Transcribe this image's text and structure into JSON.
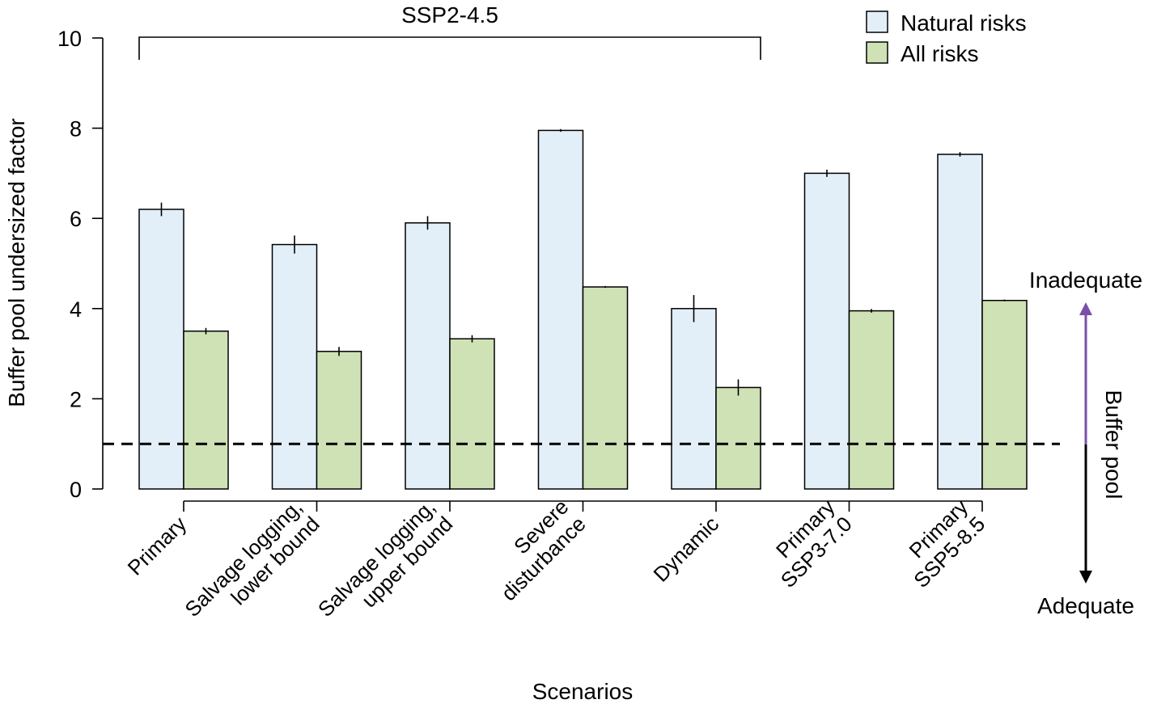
{
  "chart_data": {
    "type": "bar",
    "xlabel": "Scenarios",
    "ylabel": "Buffer pool undersized factor",
    "ylim": [
      0,
      10
    ],
    "yticks": [
      0,
      2,
      4,
      6,
      8,
      10
    ],
    "grid": false,
    "legend_position": "top-right",
    "categories": [
      [
        "Primary"
      ],
      [
        "Salvage logging,",
        "lower bound"
      ],
      [
        "Salvage logging,",
        "upper bound"
      ],
      [
        "Severe",
        "disturbance"
      ],
      [
        "Dynamic"
      ],
      [
        "Primary",
        "SSP3-7.0"
      ],
      [
        "Primary",
        "SSP5-8.5"
      ]
    ],
    "series": [
      {
        "name": "Natural risks",
        "color": "#e3eff8",
        "values": [
          6.2,
          5.42,
          5.9,
          7.95,
          4.0,
          7.0,
          7.42
        ],
        "error": [
          0.15,
          0.2,
          0.15,
          0.03,
          0.3,
          0.08,
          0.05
        ]
      },
      {
        "name": "All risks",
        "color": "#cfe2b6",
        "values": [
          3.5,
          3.05,
          3.33,
          4.48,
          2.25,
          3.95,
          4.18
        ],
        "error": [
          0.07,
          0.1,
          0.08,
          0.02,
          0.18,
          0.04,
          0.02
        ]
      }
    ],
    "reference_line": {
      "value": 1,
      "style": "dashed"
    },
    "bracket": {
      "label": "SSP2-4.5",
      "from_category": 0,
      "to_category": 4
    },
    "side_annotation": {
      "label": "Buffer pool",
      "top_label": "Inadequate",
      "bottom_label": "Adequate",
      "top_arrow_color": "#7b4fa8",
      "bottom_arrow_color": "#000000"
    }
  }
}
